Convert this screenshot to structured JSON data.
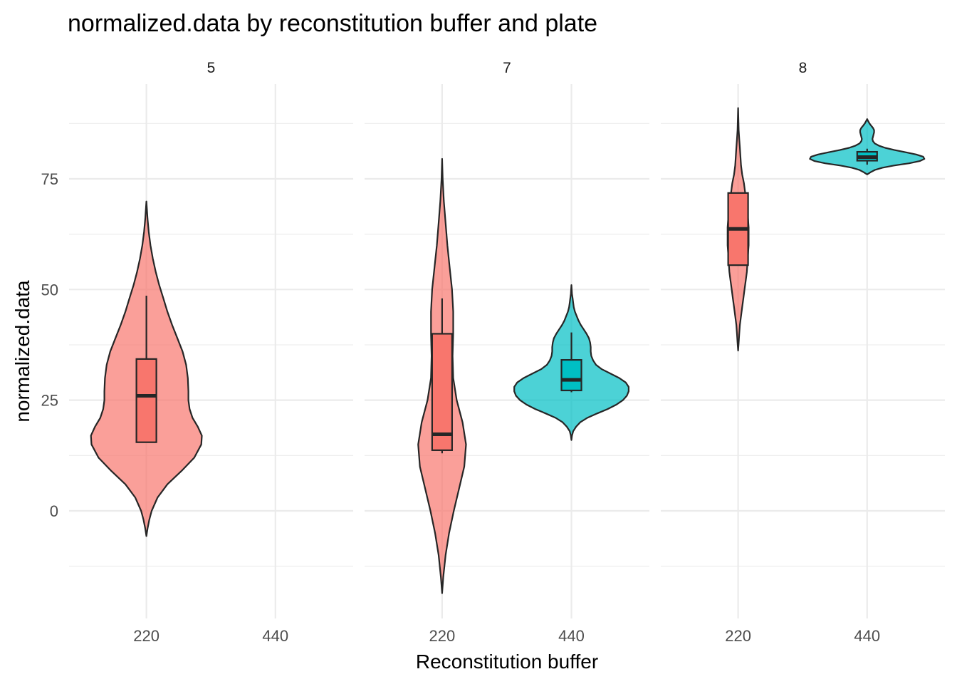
{
  "chart_data": {
    "type": "violin",
    "title": "normalized.data by reconstitution buffer and plate",
    "xlabel": "Reconstitution buffer",
    "ylabel": "normalized.data",
    "ylim": [
      -25,
      97
    ],
    "y_ticks": [
      0,
      25,
      50,
      75
    ],
    "categories": [
      "220",
      "440"
    ],
    "colors": {
      "220": "#F8766D",
      "440": "#00BFC4"
    },
    "facets": [
      {
        "label": "5",
        "groups": [
          {
            "buffer": "220",
            "box": {
              "min": 15.5,
              "q1": 15.5,
              "median": 26,
              "q3": 34.3,
              "max": 48.6
            },
            "violin": [
              [
                -5.7,
                0
              ],
              [
                -4,
                0.02
              ],
              [
                -2,
                0.05
              ],
              [
                0,
                0.09
              ],
              [
                3,
                0.19
              ],
              [
                6,
                0.36
              ],
              [
                9,
                0.6
              ],
              [
                12,
                0.82
              ],
              [
                15,
                0.94
              ],
              [
                17,
                0.95
              ],
              [
                19,
                0.88
              ],
              [
                21,
                0.79
              ],
              [
                23,
                0.74
              ],
              [
                25,
                0.72
              ],
              [
                27,
                0.72
              ],
              [
                30,
                0.71
              ],
              [
                33,
                0.68
              ],
              [
                36,
                0.62
              ],
              [
                39,
                0.53
              ],
              [
                42,
                0.44
              ],
              [
                45,
                0.36
              ],
              [
                48,
                0.29
              ],
              [
                51,
                0.22
              ],
              [
                54,
                0.16
              ],
              [
                57,
                0.11
              ],
              [
                60,
                0.07
              ],
              [
                63,
                0.04
              ],
              [
                66,
                0.02
              ],
              [
                68,
                0.01
              ],
              [
                69.9,
                0
              ]
            ]
          }
        ]
      },
      {
        "label": "7",
        "groups": [
          {
            "buffer": "220",
            "box": {
              "min": 13,
              "q1": 13.7,
              "median": 17.3,
              "q3": 40,
              "max": 48
            },
            "violin": [
              [
                -18.6,
                0
              ],
              [
                -15,
                0.02
              ],
              [
                -10,
                0.06
              ],
              [
                -5,
                0.12
              ],
              [
                0,
                0.2
              ],
              [
                5,
                0.29
              ],
              [
                10,
                0.38
              ],
              [
                15,
                0.41
              ],
              [
                20,
                0.35
              ],
              [
                25,
                0.25
              ],
              [
                30,
                0.19
              ],
              [
                35,
                0.18
              ],
              [
                40,
                0.19
              ],
              [
                45,
                0.19
              ],
              [
                50,
                0.17
              ],
              [
                55,
                0.13
              ],
              [
                60,
                0.09
              ],
              [
                65,
                0.06
              ],
              [
                70,
                0.03
              ],
              [
                75,
                0.01
              ],
              [
                79.5,
                0
              ]
            ]
          },
          {
            "buffer": "440",
            "box": {
              "min": 26.8,
              "q1": 27.2,
              "median": 29.6,
              "q3": 34.1,
              "max": 40.3
            },
            "violin": [
              [
                16,
                0
              ],
              [
                17,
                0.01
              ],
              [
                18,
                0.03
              ],
              [
                19,
                0.08
              ],
              [
                20,
                0.15
              ],
              [
                21,
                0.27
              ],
              [
                22,
                0.44
              ],
              [
                23,
                0.62
              ],
              [
                24,
                0.77
              ],
              [
                25,
                0.88
              ],
              [
                26,
                0.95
              ],
              [
                27,
                0.98
              ],
              [
                28,
                0.98
              ],
              [
                29,
                0.93
              ],
              [
                30,
                0.82
              ],
              [
                31,
                0.67
              ],
              [
                32,
                0.52
              ],
              [
                33,
                0.42
              ],
              [
                34,
                0.37
              ],
              [
                35,
                0.34
              ],
              [
                36,
                0.33
              ],
              [
                37,
                0.33
              ],
              [
                38,
                0.32
              ],
              [
                39,
                0.3
              ],
              [
                40,
                0.26
              ],
              [
                41,
                0.21
              ],
              [
                42,
                0.16
              ],
              [
                43,
                0.12
              ],
              [
                44,
                0.09
              ],
              [
                45,
                0.06
              ],
              [
                46,
                0.04
              ],
              [
                47,
                0.03
              ],
              [
                48,
                0.02
              ],
              [
                49,
                0.01
              ],
              [
                51,
                0
              ]
            ]
          }
        ]
      },
      {
        "label": "8",
        "groups": [
          {
            "buffer": "220",
            "box": {
              "min": 55.5,
              "q1": 55.5,
              "median": 63.7,
              "q3": 71.8,
              "max": 71.8
            },
            "violin": [
              [
                36.2,
                0
              ],
              [
                38,
                0.01
              ],
              [
                40,
                0.02
              ],
              [
                42,
                0.03
              ],
              [
                44,
                0.05
              ],
              [
                46,
                0.07
              ],
              [
                48,
                0.09
              ],
              [
                50,
                0.11
              ],
              [
                52,
                0.13
              ],
              [
                54,
                0.15
              ],
              [
                56,
                0.16
              ],
              [
                58,
                0.17
              ],
              [
                60,
                0.18
              ],
              [
                62,
                0.18
              ],
              [
                64,
                0.18
              ],
              [
                66,
                0.17
              ],
              [
                68,
                0.16
              ],
              [
                70,
                0.14
              ],
              [
                72,
                0.12
              ],
              [
                74,
                0.1
              ],
              [
                76,
                0.07
              ],
              [
                78,
                0.05
              ],
              [
                80,
                0.04
              ],
              [
                82,
                0.03
              ],
              [
                84,
                0.02
              ],
              [
                86,
                0.01
              ],
              [
                91,
                0
              ]
            ]
          },
          {
            "buffer": "440",
            "box": {
              "min": 78.2,
              "q1": 79.1,
              "median": 79.9,
              "q3": 81.1,
              "max": 81.8
            },
            "violin": [
              [
                76,
                0
              ],
              [
                76.5,
                0.06
              ],
              [
                77,
                0.13
              ],
              [
                77.5,
                0.26
              ],
              [
                78,
                0.46
              ],
              [
                78.5,
                0.72
              ],
              [
                79,
                0.9
              ],
              [
                79.5,
                0.98
              ],
              [
                80,
                0.96
              ],
              [
                80.5,
                0.84
              ],
              [
                81,
                0.66
              ],
              [
                81.5,
                0.47
              ],
              [
                82,
                0.31
              ],
              [
                82.5,
                0.2
              ],
              [
                83,
                0.13
              ],
              [
                83.5,
                0.1
              ],
              [
                84,
                0.09
              ],
              [
                84.5,
                0.1
              ],
              [
                85,
                0.11
              ],
              [
                85.5,
                0.12
              ],
              [
                86,
                0.12
              ],
              [
                86.5,
                0.1
              ],
              [
                87,
                0.07
              ],
              [
                87.5,
                0.04
              ],
              [
                88,
                0.02
              ],
              [
                88.5,
                0
              ]
            ]
          }
        ]
      }
    ]
  }
}
